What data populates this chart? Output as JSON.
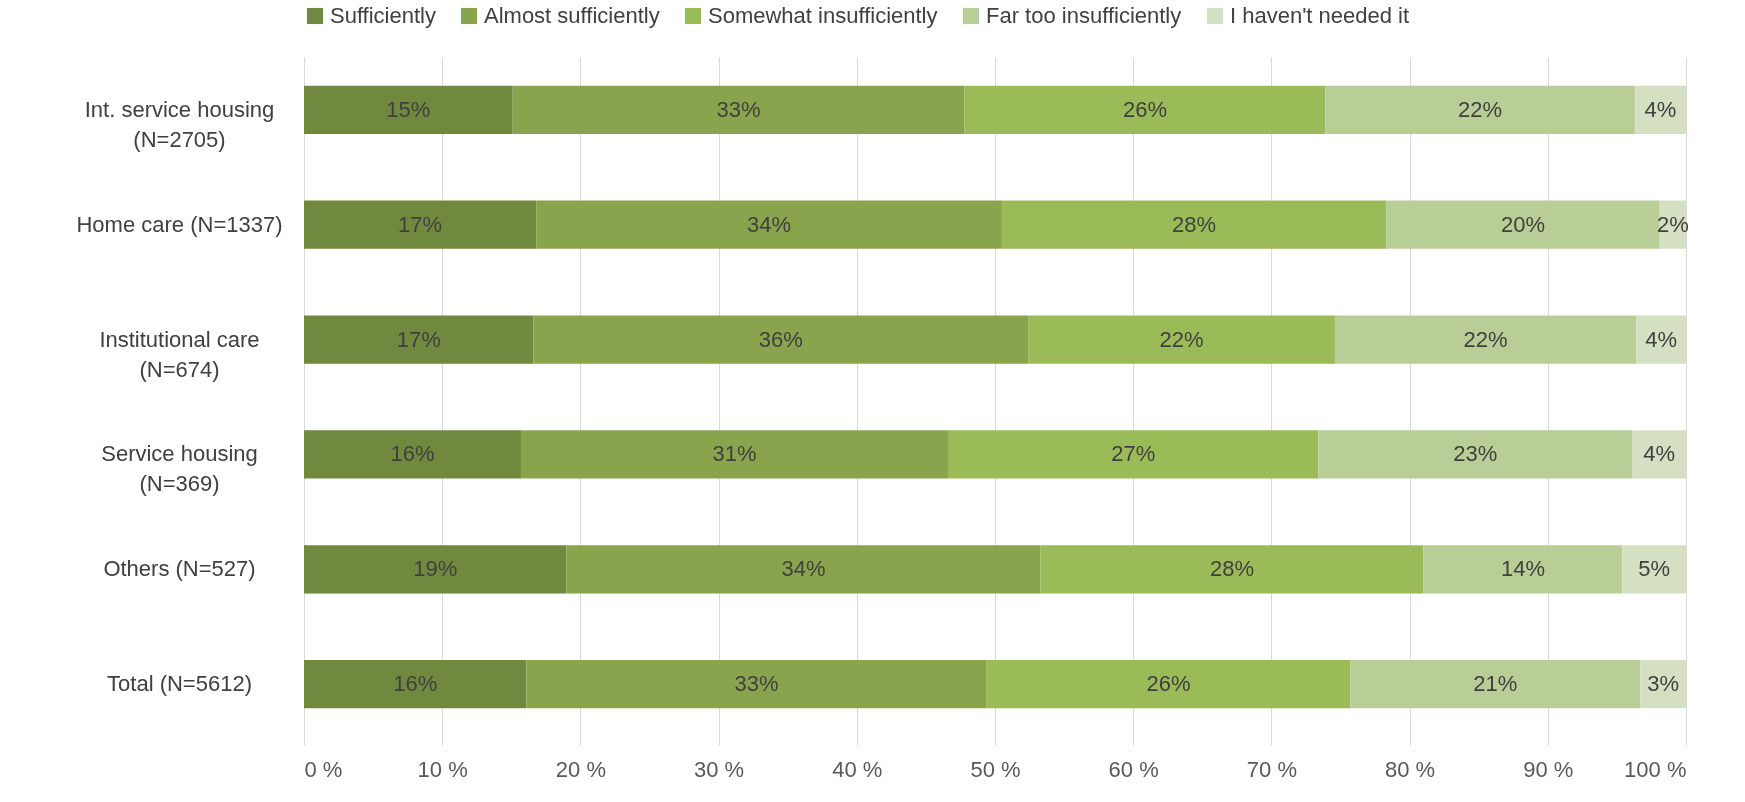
{
  "chart_data": {
    "type": "bar",
    "orientation": "horizontal",
    "stacked": true,
    "categories": [
      "Int. service housing (N=2705)",
      "Home care (N=1337)",
      "Institutional care (N=674)",
      "Service housing (N=369)",
      "Others  (N=527)",
      "Total (N=5612)"
    ],
    "series": [
      {
        "name": "Sufficiently",
        "color": "#71893f",
        "values": [
          15.1,
          16.8,
          16.6,
          15.7,
          19.0,
          16.1
        ],
        "value_labels": [
          "15%",
          "17%",
          "17%",
          "16%",
          "19%",
          "16%"
        ]
      },
      {
        "name": "Almost sufficiently",
        "color": "#8aa44e",
        "values": [
          32.7,
          33.7,
          35.8,
          30.9,
          34.3,
          33.3
        ],
        "value_labels": [
          "33%",
          "34%",
          "36%",
          "31%",
          "34%",
          "33%"
        ]
      },
      {
        "name": "Somewhat insufficiently",
        "color": "#9bbb59",
        "values": [
          26.1,
          27.8,
          22.2,
          26.8,
          27.7,
          26.3
        ],
        "value_labels": [
          "26%",
          "28%",
          "22%",
          "27%",
          "28%",
          "26%"
        ]
      },
      {
        "name": "Far too insufficiently",
        "color": "#b9cd96",
        "values": [
          22.4,
          19.8,
          21.8,
          22.7,
          14.4,
          21.0
        ],
        "value_labels": [
          "22%",
          "20%",
          "22%",
          "23%",
          "14%",
          "21%"
        ]
      },
      {
        "name": "I haven't needed it",
        "color": "#d5e0c2",
        "values": [
          3.7,
          1.9,
          3.6,
          3.9,
          4.6,
          3.3
        ],
        "value_labels": [
          "4%",
          "2%",
          "4%",
          "4%",
          "5%",
          "3%"
        ]
      }
    ],
    "xlim": [
      0,
      100
    ],
    "xticks": [
      {
        "value": 0,
        "label": "0 %"
      },
      {
        "value": 10,
        "label": "10 %"
      },
      {
        "value": 20,
        "label": "20 %"
      },
      {
        "value": 30,
        "label": "30 %"
      },
      {
        "value": 40,
        "label": "40 %"
      },
      {
        "value": 50,
        "label": "50 %"
      },
      {
        "value": 60,
        "label": "60 %"
      },
      {
        "value": 70,
        "label": "70 %"
      },
      {
        "value": 80,
        "label": "80 %"
      },
      {
        "value": 90,
        "label": "90 %"
      },
      {
        "value": 100,
        "label": "100 %"
      }
    ],
    "grid": "x",
    "legend": "top"
  }
}
